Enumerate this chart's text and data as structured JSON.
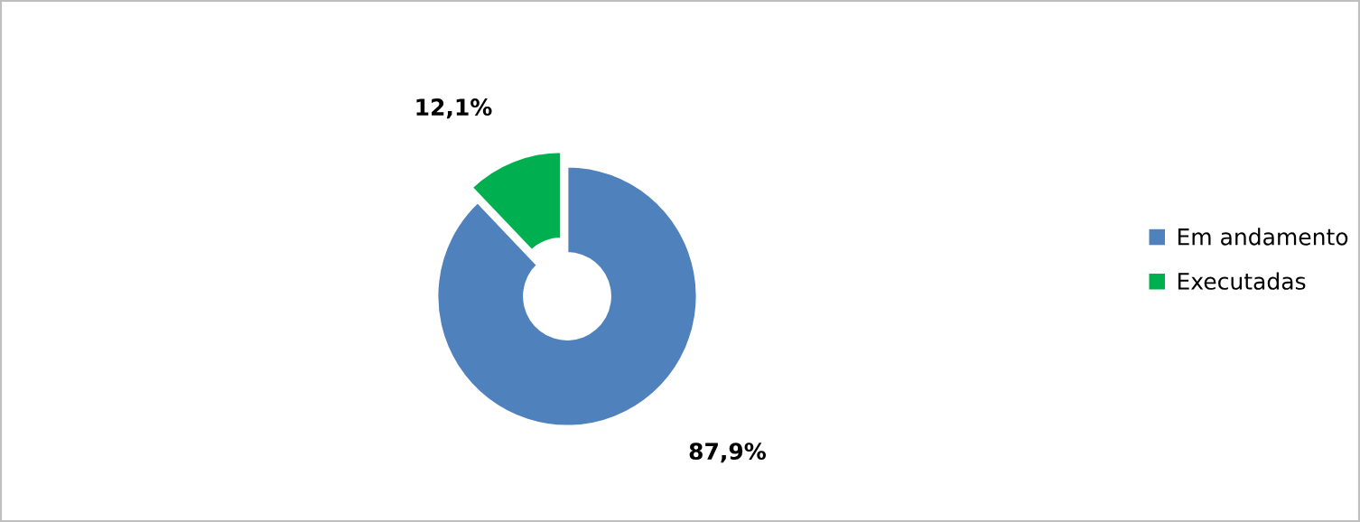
{
  "chart_data": {
    "type": "donut",
    "categories": [
      "Em andamento",
      "Executadas"
    ],
    "values": [
      87.9,
      12.1
    ],
    "colors": [
      "#4f81bd",
      "#00b050"
    ],
    "value_labels": [
      "87,9%",
      "12,1%"
    ],
    "legend": "right"
  }
}
